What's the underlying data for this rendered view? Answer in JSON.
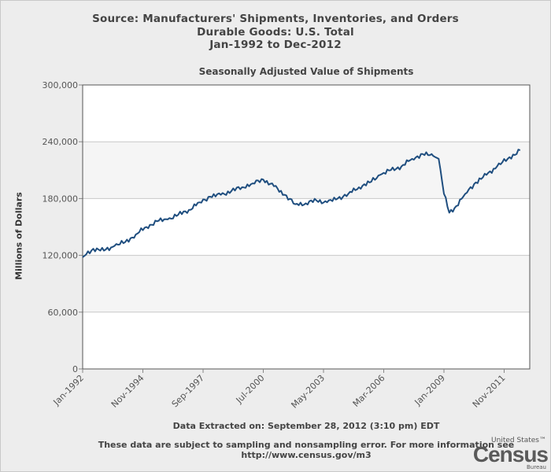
{
  "header": {
    "line1": "Source: Manufacturers' Shipments, Inventories, and Orders",
    "line2": "Durable Goods: U.S. Total",
    "line3": "Jan-1992 to Dec-2012"
  },
  "footer": {
    "extracted": "Data Extracted on: September 28, 2012 (3:10 pm) EDT",
    "note_line1": "These data are subject to sampling and nonsampling error. For more information see",
    "note_line2": "http://www.census.gov/m3"
  },
  "logo": {
    "top": "United States™",
    "main": "Census",
    "bottom": "Bureau"
  },
  "colors": {
    "line": "#1f4e7f",
    "band": "#f5f5f5",
    "plot_bg": "#ffffff",
    "grid": "#c8c8c8"
  },
  "chart_data": {
    "type": "line",
    "title": "Seasonally Adjusted Value of Shipments",
    "xlabel": "",
    "ylabel": "Millions of Dollars",
    "ylim": [
      0,
      300000
    ],
    "yticks": [
      0,
      60000,
      120000,
      180000,
      240000,
      300000
    ],
    "ytick_labels": [
      "0",
      "60,000",
      "120,000",
      "180,000",
      "240,000",
      "300,000"
    ],
    "xrange": [
      "Jan-1992",
      "Aug-2012"
    ],
    "xtick_labels": [
      "Jan-1992",
      "Nov-1994",
      "Sep-1997",
      "Jul-2000",
      "May-2003",
      "Mar-2006",
      "Jan-2009",
      "Nov-2011"
    ],
    "grid": true,
    "legend": "none",
    "series": [
      {
        "x": [
          "Jan-1992",
          "Jul-1992",
          "Jan-1993",
          "Jul-1993",
          "Jan-1994",
          "Jul-1994",
          "Jan-1995",
          "Jul-1995",
          "Jan-1996",
          "Jul-1996",
          "Jan-1997",
          "Jul-1997",
          "Jan-1998",
          "Jul-1998",
          "Jan-1999",
          "Jul-1999",
          "Jan-2000",
          "Jul-2000",
          "Jan-2001",
          "Jul-2001",
          "Jan-2002",
          "Jul-2002",
          "Jan-2003",
          "Jul-2003",
          "Jan-2004",
          "Jul-2004",
          "Jan-2005",
          "Jul-2005",
          "Jan-2006",
          "Jul-2006",
          "Jan-2007",
          "Jul-2007",
          "Jan-2008",
          "Jul-2008",
          "Oct-2008",
          "Jan-2009",
          "Apr-2009",
          "Jul-2009",
          "Jan-2010",
          "Jul-2010",
          "Jan-2011",
          "Jul-2011",
          "Jan-2012",
          "Aug-2012"
        ],
        "values": [
          118000,
          127000,
          125000,
          130000,
          134000,
          142000,
          150000,
          156000,
          158000,
          163000,
          168000,
          176000,
          182000,
          184000,
          188000,
          192000,
          196000,
          200000,
          193000,
          184000,
          174000,
          175000,
          178000,
          176000,
          180000,
          185000,
          192000,
          197000,
          205000,
          210000,
          214000,
          222000,
          227000,
          225000,
          222000,
          185000,
          165000,
          170000,
          185000,
          197000,
          205000,
          214000,
          222000,
          231000
        ]
      }
    ]
  }
}
